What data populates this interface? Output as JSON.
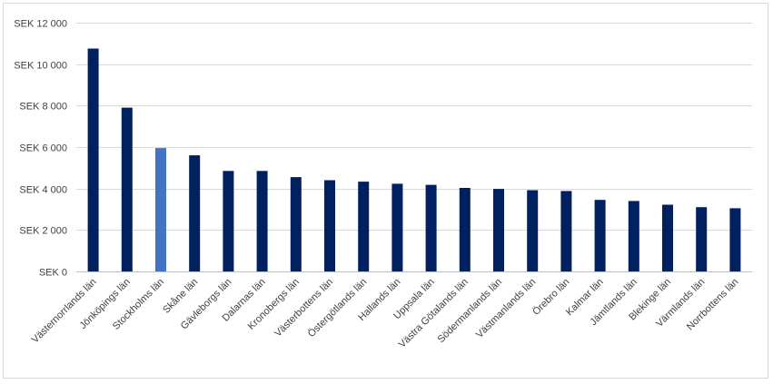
{
  "chart_data": {
    "type": "bar",
    "title": "",
    "xlabel": "",
    "ylabel": "",
    "ylim": [
      0,
      12000
    ],
    "grid": true,
    "legend": "none",
    "y_ticks": [
      {
        "value": 0,
        "label": "SEK 0"
      },
      {
        "value": 2000,
        "label": "SEK 2 000"
      },
      {
        "value": 4000,
        "label": "SEK 4 000"
      },
      {
        "value": 6000,
        "label": "SEK 6 000"
      },
      {
        "value": 8000,
        "label": "SEK 8 000"
      },
      {
        "value": 10000,
        "label": "SEK 10 000"
      },
      {
        "value": 12000,
        "label": "SEK 12 000"
      }
    ],
    "categories": [
      "Västernorrlands län",
      "Jönköpings län",
      "Stockholms län",
      "Skåne län",
      "Gävleborgs län",
      "Dalarnas län",
      "Kronobergs län",
      "Västerbottens län",
      "Östergötlands län",
      "Hallands län",
      "Uppsala län",
      "Västra Götalands län",
      "Södermanlands län",
      "Västmanlands län",
      "Örebro län",
      "Kalmar län",
      "Jämtlands län",
      "Blekinge län",
      "Värmlands län",
      "Norrbottens län"
    ],
    "values": [
      10750,
      7900,
      5950,
      5600,
      4850,
      4850,
      4550,
      4400,
      4330,
      4230,
      4180,
      4030,
      3980,
      3920,
      3880,
      3450,
      3400,
      3220,
      3100,
      3050
    ],
    "colors": {
      "default": "#002060",
      "highlight": "#4472c4",
      "gridline": "#d9d9d9",
      "axis": "#bfbfbf"
    },
    "highlight_category": "Stockholms län"
  }
}
